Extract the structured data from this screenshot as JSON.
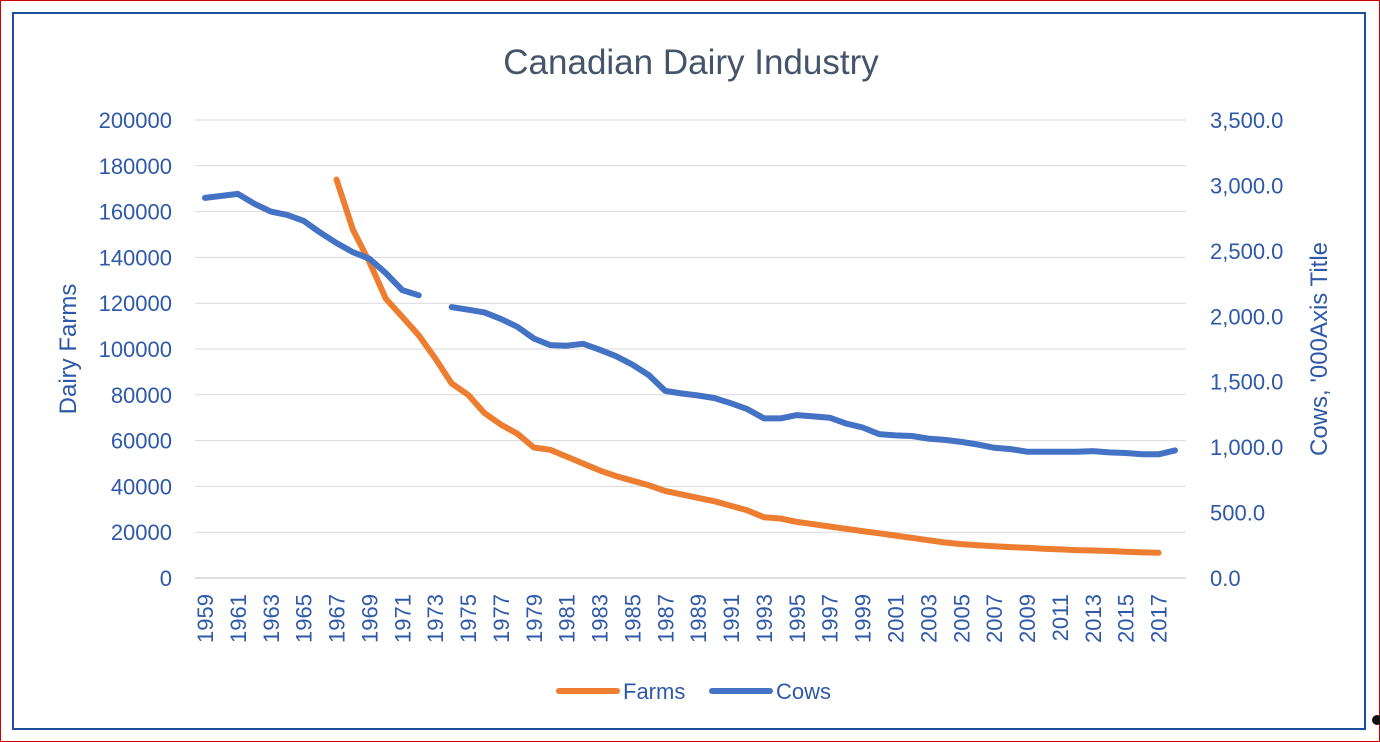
{
  "chart_data": {
    "type": "line",
    "title": "Canadian Dairy Industry",
    "xlabel": "",
    "ylabel": "Dairy Farms",
    "y2label": "Cows, '000Axis Title",
    "x": [
      1959,
      1960,
      1961,
      1962,
      1963,
      1964,
      1965,
      1966,
      1967,
      1968,
      1969,
      1970,
      1971,
      1972,
      1973,
      1974,
      1975,
      1976,
      1977,
      1978,
      1979,
      1980,
      1981,
      1982,
      1983,
      1984,
      1985,
      1986,
      1987,
      1988,
      1989,
      1990,
      1991,
      1992,
      1993,
      1994,
      1995,
      1996,
      1997,
      1998,
      1999,
      2000,
      2001,
      2002,
      2003,
      2004,
      2005,
      2006,
      2007,
      2008,
      2009,
      2010,
      2011,
      2012,
      2013,
      2014,
      2015,
      2016,
      2017,
      2018
    ],
    "x_tick_labels": [
      "1959",
      "1961",
      "1963",
      "1965",
      "1967",
      "1969",
      "1971",
      "1973",
      "1975",
      "1977",
      "1979",
      "1981",
      "1983",
      "1985",
      "1987",
      "1989",
      "1991",
      "1993",
      "1995",
      "1997",
      "1999",
      "2001",
      "2003",
      "2005",
      "2007",
      "2009",
      "2011",
      "2013",
      "2015",
      "2017"
    ],
    "ylim": [
      0,
      200000
    ],
    "y_ticks": [
      "0",
      "20000",
      "40000",
      "60000",
      "80000",
      "100000",
      "120000",
      "140000",
      "160000",
      "180000",
      "200000"
    ],
    "y2lim": [
      0,
      3500
    ],
    "y2_ticks": [
      "0.0",
      "500.0",
      "1,000.0",
      "1,500.0",
      "2,000.0",
      "2,500.0",
      "3,000.0",
      "3,500.0"
    ],
    "grid": true,
    "legend_position": "bottom",
    "series": [
      {
        "name": "Farms",
        "axis": "left",
        "color": "#ed7d31",
        "values": [
          null,
          null,
          null,
          null,
          null,
          null,
          null,
          null,
          174000,
          152000,
          138000,
          122000,
          114000,
          106000,
          96000,
          85000,
          80000,
          72000,
          67000,
          63000,
          57000,
          56000,
          53000,
          50000,
          47000,
          44500,
          42500,
          40500,
          38000,
          36500,
          35000,
          33500,
          31500,
          29500,
          26500,
          26000,
          24500,
          23500,
          22500,
          21500,
          20500,
          19500,
          18500,
          17500,
          16500,
          15500,
          14800,
          14300,
          13900,
          13500,
          13200,
          12800,
          12500,
          12200,
          12000,
          11800,
          11500,
          11200,
          11000,
          null
        ]
      },
      {
        "name": "Cows",
        "axis": "right",
        "color": "#4472c4",
        "values": [
          2905,
          2920,
          2935,
          2860,
          2800,
          2775,
          2730,
          2640,
          2560,
          2490,
          2440,
          2330,
          2200,
          2160,
          null,
          2070,
          2050,
          2030,
          1980,
          1920,
          1830,
          1780,
          1775,
          1790,
          1745,
          1695,
          1630,
          1550,
          1430,
          1410,
          1395,
          1375,
          1335,
          1290,
          1220,
          1220,
          1245,
          1235,
          1225,
          1180,
          1150,
          1100,
          1090,
          1085,
          1065,
          1055,
          1040,
          1020,
          995,
          985,
          965,
          965,
          965,
          965,
          970,
          960,
          955,
          945,
          945,
          975
        ]
      }
    ]
  }
}
